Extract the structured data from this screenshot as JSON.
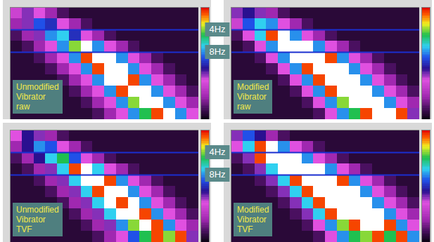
{
  "chart_data": {
    "type": "heatmap",
    "tick_labels": false,
    "xlim": [
      0,
      16
    ],
    "ylim": [
      0,
      20
    ],
    "x_bins": [
      0,
      1,
      2,
      3,
      4,
      5,
      6,
      7,
      8,
      9,
      10,
      11,
      12,
      13,
      14,
      15,
      16
    ],
    "y_bins": [
      0,
      2,
      4,
      6,
      8,
      10,
      12,
      14,
      16,
      18,
      20
    ],
    "colorbar": {
      "range": [
        0,
        100
      ]
    },
    "reference_lines": [
      {
        "value": 4,
        "label": "4Hz"
      },
      {
        "value": 8,
        "label": "8Hz"
      }
    ],
    "panels": [
      {
        "annotation": "Unmodified\nVibrator\nraw",
        "cells": [
          [
            30,
            40,
            35,
            20,
            10,
            5,
            5,
            5,
            5,
            5,
            5,
            5,
            5,
            5,
            5,
            5
          ],
          [
            20,
            40,
            55,
            50,
            35,
            20,
            10,
            5,
            5,
            5,
            5,
            5,
            5,
            5,
            5,
            5
          ],
          [
            10,
            20,
            40,
            60,
            65,
            50,
            35,
            20,
            10,
            5,
            5,
            5,
            5,
            5,
            5,
            5
          ],
          [
            5,
            10,
            20,
            35,
            60,
            80,
            110,
            60,
            35,
            20,
            10,
            5,
            5,
            5,
            5,
            5
          ],
          [
            5,
            5,
            10,
            20,
            35,
            60,
            95,
            110,
            110,
            60,
            35,
            20,
            10,
            5,
            5,
            5
          ],
          [
            5,
            5,
            5,
            10,
            20,
            35,
            60,
            95,
            110,
            110,
            60,
            35,
            20,
            10,
            5,
            5
          ],
          [
            5,
            5,
            5,
            5,
            10,
            20,
            35,
            60,
            110,
            110,
            95,
            60,
            35,
            20,
            10,
            5
          ],
          [
            5,
            5,
            5,
            5,
            5,
            10,
            20,
            35,
            60,
            95,
            110,
            110,
            60,
            35,
            20,
            10
          ],
          [
            5,
            5,
            5,
            5,
            5,
            5,
            10,
            20,
            35,
            60,
            80,
            110,
            110,
            60,
            35,
            20
          ],
          [
            5,
            5,
            5,
            5,
            5,
            5,
            5,
            10,
            20,
            35,
            60,
            75,
            95,
            110,
            60,
            35
          ]
        ]
      },
      {
        "annotation": "Modified\nVibrator\nraw",
        "cells": [
          [
            40,
            45,
            40,
            20,
            10,
            5,
            5,
            5,
            5,
            5,
            5,
            5,
            5,
            5,
            5,
            5
          ],
          [
            30,
            55,
            65,
            60,
            35,
            20,
            10,
            5,
            5,
            5,
            5,
            5,
            5,
            5,
            5,
            5
          ],
          [
            10,
            35,
            65,
            95,
            110,
            60,
            35,
            20,
            10,
            5,
            5,
            5,
            5,
            5,
            5,
            5
          ],
          [
            5,
            10,
            35,
            60,
            110,
            110,
            110,
            60,
            35,
            20,
            10,
            5,
            5,
            5,
            5,
            5
          ],
          [
            5,
            5,
            10,
            35,
            60,
            110,
            110,
            110,
            95,
            60,
            35,
            20,
            10,
            5,
            5,
            5
          ],
          [
            5,
            5,
            5,
            10,
            35,
            60,
            95,
            110,
            110,
            110,
            60,
            35,
            20,
            10,
            5,
            5
          ],
          [
            5,
            5,
            5,
            5,
            10,
            35,
            60,
            95,
            110,
            110,
            110,
            60,
            35,
            20,
            10,
            5
          ],
          [
            5,
            5,
            5,
            5,
            5,
            10,
            35,
            60,
            95,
            110,
            110,
            110,
            60,
            35,
            20,
            10
          ],
          [
            5,
            5,
            5,
            5,
            5,
            5,
            10,
            35,
            60,
            80,
            110,
            110,
            110,
            60,
            35,
            20
          ],
          [
            5,
            5,
            5,
            5,
            5,
            5,
            5,
            10,
            35,
            60,
            75,
            95,
            110,
            110,
            95,
            40
          ]
        ]
      },
      {
        "annotation": "Unmodified\nVibrator\nTVF",
        "cells": [
          [
            35,
            45,
            40,
            20,
            10,
            5,
            5,
            5,
            5,
            5,
            5,
            5,
            5,
            5,
            5,
            5
          ],
          [
            20,
            45,
            60,
            55,
            35,
            20,
            10,
            5,
            5,
            5,
            5,
            5,
            5,
            5,
            5,
            5
          ],
          [
            10,
            20,
            45,
            65,
            75,
            55,
            35,
            20,
            10,
            5,
            5,
            5,
            5,
            5,
            5,
            5
          ],
          [
            5,
            10,
            20,
            40,
            65,
            95,
            110,
            65,
            35,
            20,
            10,
            5,
            5,
            5,
            5,
            5
          ],
          [
            5,
            5,
            10,
            20,
            40,
            65,
            110,
            110,
            95,
            60,
            35,
            20,
            10,
            5,
            5,
            5
          ],
          [
            5,
            5,
            5,
            10,
            20,
            40,
            65,
            95,
            110,
            110,
            60,
            35,
            20,
            10,
            5,
            5
          ],
          [
            5,
            5,
            5,
            5,
            10,
            20,
            40,
            65,
            110,
            95,
            110,
            60,
            35,
            20,
            10,
            5
          ],
          [
            5,
            5,
            5,
            5,
            5,
            10,
            20,
            40,
            65,
            110,
            110,
            95,
            60,
            35,
            20,
            10
          ],
          [
            5,
            5,
            5,
            5,
            5,
            5,
            10,
            20,
            40,
            60,
            80,
            110,
            95,
            60,
            35,
            20
          ],
          [
            5,
            5,
            5,
            5,
            5,
            5,
            5,
            10,
            20,
            35,
            55,
            75,
            95,
            80,
            95,
            40
          ]
        ]
      },
      {
        "annotation": "Modified\nVibrator\nTVF",
        "cells": [
          [
            40,
            55,
            45,
            20,
            10,
            5,
            5,
            5,
            5,
            5,
            5,
            5,
            5,
            5,
            5,
            5
          ],
          [
            35,
            65,
            95,
            110,
            60,
            35,
            20,
            10,
            5,
            5,
            5,
            5,
            5,
            5,
            5,
            5
          ],
          [
            10,
            40,
            95,
            110,
            110,
            110,
            60,
            35,
            20,
            10,
            5,
            5,
            5,
            5,
            5,
            5
          ],
          [
            5,
            10,
            40,
            65,
            110,
            110,
            110,
            110,
            60,
            35,
            20,
            10,
            5,
            5,
            5,
            5
          ],
          [
            5,
            5,
            10,
            40,
            65,
            95,
            110,
            110,
            110,
            95,
            60,
            35,
            20,
            10,
            5,
            5
          ],
          [
            5,
            5,
            5,
            10,
            40,
            65,
            95,
            110,
            110,
            110,
            110,
            60,
            35,
            20,
            10,
            5
          ],
          [
            5,
            5,
            5,
            5,
            10,
            40,
            65,
            95,
            110,
            110,
            110,
            110,
            60,
            35,
            20,
            10
          ],
          [
            5,
            5,
            5,
            5,
            5,
            10,
            40,
            65,
            95,
            110,
            110,
            110,
            110,
            60,
            35,
            20
          ],
          [
            5,
            5,
            5,
            5,
            5,
            5,
            10,
            35,
            60,
            80,
            95,
            110,
            110,
            95,
            60,
            35
          ],
          [
            5,
            5,
            5,
            5,
            5,
            5,
            5,
            10,
            35,
            60,
            75,
            80,
            95,
            75,
            95,
            60
          ]
        ]
      }
    ]
  }
}
